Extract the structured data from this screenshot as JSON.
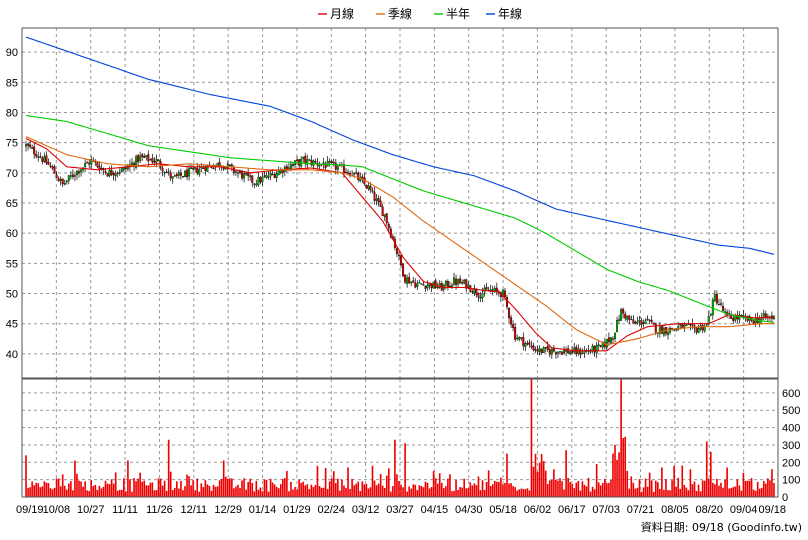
{
  "chart_data": {
    "type": "candlestick",
    "legend": [
      {
        "name": "月線",
        "color": "#dd0000"
      },
      {
        "name": "季線",
        "color": "#e06a10"
      },
      {
        "name": "半年",
        "color": "#00cc00"
      },
      {
        "name": "年線",
        "color": "#0044dd"
      }
    ],
    "legend_placement": "top-center",
    "price_axis": {
      "ticks": [
        40,
        45,
        50,
        55,
        60,
        65,
        70,
        75,
        80,
        85,
        90
      ],
      "range": [
        36,
        94
      ],
      "side": "left"
    },
    "volume_axis": {
      "ticks": [
        0,
        100,
        200,
        300,
        400,
        500,
        600
      ],
      "range": [
        0,
        680
      ],
      "side": "right"
    },
    "x_tick_labels": [
      "09/19",
      "10/08",
      "10/27",
      "11/11",
      "11/26",
      "12/11",
      "12/29",
      "01/14",
      "01/29",
      "02/24",
      "03/12",
      "03/27",
      "04/15",
      "04/30",
      "05/18",
      "06/02",
      "06/17",
      "07/03",
      "07/21",
      "08/05",
      "08/20",
      "09/04",
      "09/18"
    ],
    "grid": true,
    "up_color": "#00bb00",
    "down_color": "#dd0000",
    "volume_color": "#ee0000",
    "price_anchors": [
      [
        0,
        74.5
      ],
      [
        6,
        73
      ],
      [
        12,
        71
      ],
      [
        18,
        68
      ],
      [
        24,
        70
      ],
      [
        32,
        72
      ],
      [
        40,
        70
      ],
      [
        48,
        70.5
      ],
      [
        56,
        72.5
      ],
      [
        64,
        72
      ],
      [
        72,
        69
      ],
      [
        80,
        70
      ],
      [
        88,
        71
      ],
      [
        96,
        71.5
      ],
      [
        104,
        70
      ],
      [
        112,
        68.5
      ],
      [
        120,
        69.5
      ],
      [
        128,
        71
      ],
      [
        136,
        72
      ],
      [
        144,
        71.5
      ],
      [
        152,
        71
      ],
      [
        160,
        70
      ],
      [
        168,
        67.5
      ],
      [
        176,
        63
      ],
      [
        180,
        59
      ],
      [
        186,
        52.5
      ],
      [
        192,
        51.5
      ],
      [
        198,
        51.5
      ],
      [
        204,
        51
      ],
      [
        210,
        52
      ],
      [
        216,
        51.5
      ],
      [
        222,
        50
      ],
      [
        228,
        50.5
      ],
      [
        234,
        50
      ],
      [
        240,
        43
      ],
      [
        246,
        41.5
      ],
      [
        252,
        40.5
      ],
      [
        258,
        40.5
      ],
      [
        264,
        40.5
      ],
      [
        270,
        40.3
      ],
      [
        276,
        40.5
      ],
      [
        282,
        41
      ],
      [
        288,
        43
      ],
      [
        292,
        47
      ],
      [
        298,
        45
      ],
      [
        304,
        45.5
      ],
      [
        310,
        44
      ],
      [
        316,
        44
      ],
      [
        322,
        44.5
      ],
      [
        328,
        44
      ],
      [
        334,
        44.8
      ],
      [
        338,
        49.5
      ],
      [
        344,
        46
      ],
      [
        350,
        46
      ],
      [
        356,
        45.5
      ],
      [
        362,
        46
      ],
      [
        367,
        46
      ]
    ],
    "ma_month": [
      [
        0,
        75.7
      ],
      [
        10,
        74
      ],
      [
        20,
        71
      ],
      [
        35,
        70.5
      ],
      [
        50,
        71
      ],
      [
        65,
        71.5
      ],
      [
        80,
        71
      ],
      [
        95,
        71
      ],
      [
        110,
        70
      ],
      [
        125,
        70.5
      ],
      [
        140,
        70.8
      ],
      [
        155,
        70
      ],
      [
        165,
        66
      ],
      [
        175,
        62
      ],
      [
        185,
        56
      ],
      [
        195,
        52
      ],
      [
        205,
        51
      ],
      [
        215,
        51
      ],
      [
        225,
        50.5
      ],
      [
        232,
        50.3
      ],
      [
        240,
        47.5
      ],
      [
        250,
        43.5
      ],
      [
        258,
        41
      ],
      [
        270,
        40.5
      ],
      [
        285,
        40.5
      ],
      [
        295,
        43
      ],
      [
        305,
        44.5
      ],
      [
        320,
        45
      ],
      [
        335,
        45
      ],
      [
        345,
        46.5
      ],
      [
        355,
        46
      ],
      [
        367,
        46
      ]
    ],
    "ma_quarter": [
      [
        0,
        76
      ],
      [
        20,
        73
      ],
      [
        40,
        71.5
      ],
      [
        60,
        71
      ],
      [
        80,
        71.5
      ],
      [
        100,
        71
      ],
      [
        120,
        70.5
      ],
      [
        140,
        70.5
      ],
      [
        155,
        70
      ],
      [
        165,
        69
      ],
      [
        180,
        66
      ],
      [
        195,
        62
      ],
      [
        210,
        58.5
      ],
      [
        225,
        55
      ],
      [
        240,
        51.5
      ],
      [
        255,
        48
      ],
      [
        270,
        44
      ],
      [
        285,
        41.5
      ],
      [
        300,
        42.5
      ],
      [
        315,
        44
      ],
      [
        330,
        44.5
      ],
      [
        345,
        44.5
      ],
      [
        360,
        45
      ],
      [
        367,
        45
      ]
    ],
    "ma_halfyear": [
      [
        0,
        79.5
      ],
      [
        20,
        78.5
      ],
      [
        40,
        76.5
      ],
      [
        60,
        74.5
      ],
      [
        80,
        73.5
      ],
      [
        100,
        72.5
      ],
      [
        120,
        72
      ],
      [
        140,
        71.5
      ],
      [
        155,
        71.3
      ],
      [
        165,
        71
      ],
      [
        180,
        69
      ],
      [
        195,
        67
      ],
      [
        210,
        65.5
      ],
      [
        225,
        64
      ],
      [
        240,
        62.5
      ],
      [
        255,
        60
      ],
      [
        270,
        57
      ],
      [
        285,
        54
      ],
      [
        300,
        52
      ],
      [
        315,
        50.5
      ],
      [
        330,
        48.5
      ],
      [
        345,
        46.5
      ],
      [
        360,
        45.5
      ],
      [
        367,
        45.2
      ]
    ],
    "ma_year": [
      [
        0,
        92.5
      ],
      [
        30,
        89
      ],
      [
        60,
        85.5
      ],
      [
        90,
        83
      ],
      [
        120,
        81
      ],
      [
        140,
        78.5
      ],
      [
        160,
        75.5
      ],
      [
        180,
        73
      ],
      [
        200,
        71
      ],
      [
        220,
        69.5
      ],
      [
        240,
        67
      ],
      [
        260,
        64
      ],
      [
        280,
        62.5
      ],
      [
        300,
        61
      ],
      [
        320,
        59.5
      ],
      [
        340,
        58
      ],
      [
        355,
        57.5
      ],
      [
        367,
        56.5
      ]
    ]
  },
  "footer": {
    "date_label": "資料日期: 09/18",
    "source": "(Goodinfo.tw)"
  }
}
